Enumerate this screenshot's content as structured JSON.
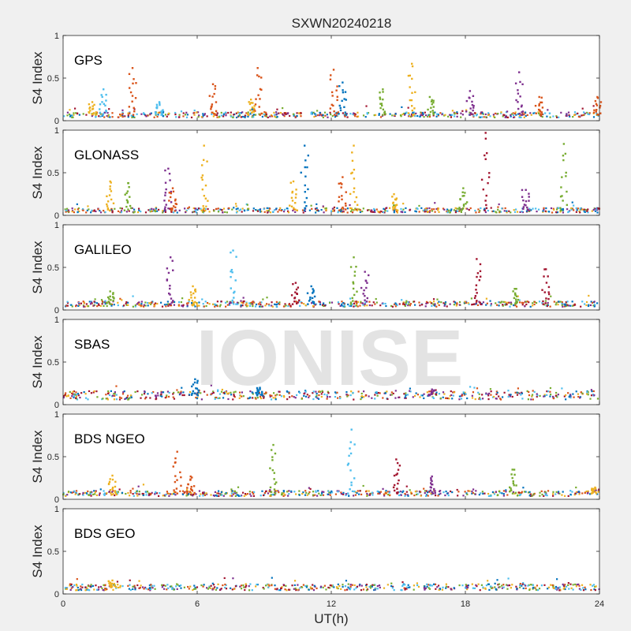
{
  "chart_data": {
    "type": "scatter",
    "title": "SXWN20240218",
    "xlabel": "UT(h)",
    "xlim": [
      0,
      24
    ],
    "xticks": [
      0,
      6,
      12,
      18,
      24
    ],
    "watermark": "IONISE",
    "series_colors": [
      "#0072BD",
      "#D95319",
      "#EDB120",
      "#7E2F8E",
      "#77AC30",
      "#4DBEEE",
      "#A2142F"
    ],
    "panels": [
      {
        "name": "GPS",
        "ylabel": "S4 Index",
        "ylim": [
          0,
          1
        ],
        "yticks": [
          "0",
          "0.5",
          "1"
        ],
        "baseline": 0.07,
        "peaks": [
          {
            "series": 2,
            "x": 1.3,
            "y": 0.22
          },
          {
            "series": 5,
            "x": 1.8,
            "y": 0.37
          },
          {
            "series": 1,
            "x": 3.1,
            "y": 0.62
          },
          {
            "series": 5,
            "x": 4.3,
            "y": 0.22
          },
          {
            "series": 1,
            "x": 6.7,
            "y": 0.43
          },
          {
            "series": 1,
            "x": 8.7,
            "y": 0.62
          },
          {
            "series": 2,
            "x": 8.4,
            "y": 0.25
          },
          {
            "series": 1,
            "x": 12.1,
            "y": 0.6
          },
          {
            "series": 0,
            "x": 12.5,
            "y": 0.45
          },
          {
            "series": 4,
            "x": 14.3,
            "y": 0.37
          },
          {
            "series": 2,
            "x": 15.6,
            "y": 0.67
          },
          {
            "series": 4,
            "x": 16.4,
            "y": 0.28
          },
          {
            "series": 3,
            "x": 18.2,
            "y": 0.35
          },
          {
            "series": 3,
            "x": 20.4,
            "y": 0.57
          },
          {
            "series": 1,
            "x": 21.3,
            "y": 0.28
          },
          {
            "series": 1,
            "x": 23.9,
            "y": 0.28
          }
        ]
      },
      {
        "name": "GLONASS",
        "ylabel": "S4 Index",
        "ylim": [
          0,
          1
        ],
        "yticks": [
          "0",
          "0.5",
          "1"
        ],
        "baseline": 0.06,
        "peaks": [
          {
            "series": 2,
            "x": 2.1,
            "y": 0.4
          },
          {
            "series": 4,
            "x": 2.9,
            "y": 0.38
          },
          {
            "series": 3,
            "x": 4.7,
            "y": 0.55
          },
          {
            "series": 1,
            "x": 4.9,
            "y": 0.32
          },
          {
            "series": 2,
            "x": 6.3,
            "y": 0.82
          },
          {
            "series": 2,
            "x": 10.3,
            "y": 0.4
          },
          {
            "series": 0,
            "x": 10.8,
            "y": 0.82
          },
          {
            "series": 1,
            "x": 12.5,
            "y": 0.45
          },
          {
            "series": 2,
            "x": 13.0,
            "y": 0.82
          },
          {
            "series": 2,
            "x": 14.8,
            "y": 0.25
          },
          {
            "series": 4,
            "x": 17.9,
            "y": 0.32
          },
          {
            "series": 6,
            "x": 18.9,
            "y": 0.97
          },
          {
            "series": 3,
            "x": 20.7,
            "y": 0.3
          },
          {
            "series": 4,
            "x": 22.4,
            "y": 0.84
          }
        ]
      },
      {
        "name": "GALILEO",
        "ylabel": "S4 Index",
        "ylim": [
          0,
          1
        ],
        "yticks": [
          "0",
          "0.5",
          "1"
        ],
        "baseline": 0.07,
        "peaks": [
          {
            "series": 4,
            "x": 2.1,
            "y": 0.22
          },
          {
            "series": 3,
            "x": 4.8,
            "y": 0.62
          },
          {
            "series": 2,
            "x": 5.8,
            "y": 0.28
          },
          {
            "series": 5,
            "x": 7.6,
            "y": 0.7
          },
          {
            "series": 6,
            "x": 10.4,
            "y": 0.32
          },
          {
            "series": 0,
            "x": 11.1,
            "y": 0.28
          },
          {
            "series": 4,
            "x": 13.0,
            "y": 0.62
          },
          {
            "series": 3,
            "x": 13.5,
            "y": 0.45
          },
          {
            "series": 6,
            "x": 18.5,
            "y": 0.6
          },
          {
            "series": 4,
            "x": 20.2,
            "y": 0.25
          },
          {
            "series": 6,
            "x": 21.6,
            "y": 0.48
          }
        ]
      },
      {
        "name": "SBAS",
        "ylabel": "S4 Index",
        "ylim": [
          0,
          1
        ],
        "yticks": [
          "0",
          "0.5",
          "1"
        ],
        "baseline": 0.11,
        "peaks": [
          {
            "series": 0,
            "x": 5.9,
            "y": 0.3
          },
          {
            "series": 0,
            "x": 8.8,
            "y": 0.2
          },
          {
            "series": 3,
            "x": 16.5,
            "y": 0.18
          }
        ]
      },
      {
        "name": "BDS NGEO",
        "ylabel": "S4 Index",
        "ylim": [
          0,
          1
        ],
        "yticks": [
          "0",
          "0.5",
          "1"
        ],
        "baseline": 0.07,
        "peaks": [
          {
            "series": 2,
            "x": 2.2,
            "y": 0.28
          },
          {
            "series": 1,
            "x": 5.1,
            "y": 0.56
          },
          {
            "series": 1,
            "x": 5.7,
            "y": 0.27
          },
          {
            "series": 4,
            "x": 9.4,
            "y": 0.64
          },
          {
            "series": 5,
            "x": 12.9,
            "y": 0.82
          },
          {
            "series": 6,
            "x": 14.9,
            "y": 0.47
          },
          {
            "series": 3,
            "x": 16.5,
            "y": 0.27
          },
          {
            "series": 4,
            "x": 20.1,
            "y": 0.35
          },
          {
            "series": 2,
            "x": 23.8,
            "y": 0.14
          }
        ]
      },
      {
        "name": "BDS GEO",
        "ylabel": "S4 Index",
        "ylim": [
          0,
          1
        ],
        "yticks": [
          "0",
          "0.5",
          "1"
        ],
        "baseline": 0.08,
        "peaks": [
          {
            "series": 2,
            "x": 2.2,
            "y": 0.16
          }
        ]
      }
    ]
  }
}
